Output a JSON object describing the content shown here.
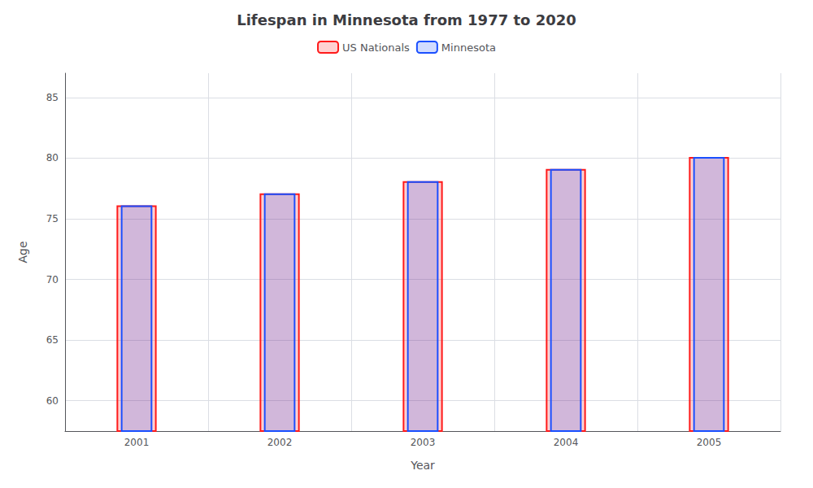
{
  "chart_data": {
    "type": "bar",
    "title": "Lifespan in Minnesota from 1977 to 2020",
    "xlabel": "Year",
    "ylabel": "Age",
    "categories": [
      "2001",
      "2002",
      "2003",
      "2004",
      "2005"
    ],
    "series": [
      {
        "name": "US Nationals",
        "color": "#ff1a1a",
        "values": [
          76.1,
          77.1,
          78.1,
          79.1,
          80.1
        ]
      },
      {
        "name": "Minnesota",
        "color": "#1a4fff",
        "values": [
          76.1,
          77.1,
          78.1,
          79.1,
          80.1
        ]
      }
    ],
    "ylim": [
      57.5,
      87
    ],
    "yticks": [
      60,
      65,
      70,
      75,
      80,
      85
    ],
    "grid": true,
    "legend": "top"
  }
}
